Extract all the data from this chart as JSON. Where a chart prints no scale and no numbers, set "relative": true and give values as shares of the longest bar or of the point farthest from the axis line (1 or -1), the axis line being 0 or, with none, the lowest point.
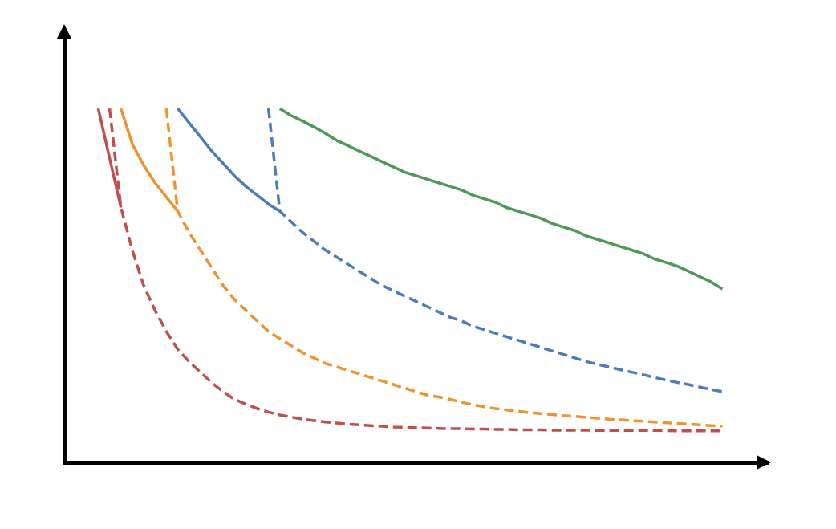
{
  "chart_data": {
    "type": "line",
    "relative": true,
    "grid": false,
    "legend": false,
    "marker": "none",
    "categories": [
      null,
      null,
      null,
      null,
      null,
      null,
      null,
      null,
      null,
      null,
      null,
      null,
      null,
      null,
      null,
      null,
      null,
      null,
      null,
      null,
      null,
      null,
      null,
      null,
      null,
      null,
      null,
      null,
      null,
      null,
      null,
      null,
      null,
      null,
      null,
      null,
      null,
      null,
      null,
      null,
      null,
      null,
      null,
      null,
      null,
      null,
      null,
      null,
      null,
      null,
      null,
      null,
      null,
      null,
      null,
      null,
      null,
      null,
      null,
      null,
      null,
      null,
      null
    ],
    "series": [
      {
        "color": "#c0504d",
        "line_style": "solid",
        "values": [
          null,
          null,
          null,
          1.0,
          0.86,
          0.72,
          null,
          null,
          null,
          null,
          null,
          null,
          null,
          null,
          null,
          null,
          null,
          null,
          null,
          null,
          null,
          null,
          null,
          null,
          null,
          null,
          null,
          null,
          null,
          null,
          null,
          null,
          null,
          null,
          null,
          null,
          null,
          null,
          null,
          null,
          null,
          null,
          null,
          null,
          null,
          null,
          null,
          null,
          null,
          null,
          null,
          null,
          null,
          null,
          null,
          null,
          null,
          null,
          null,
          null,
          null,
          null,
          null
        ]
      },
      {
        "color": "#c0504d",
        "line_style": "dashed",
        "values": [
          null,
          null,
          null,
          null,
          1.0,
          0.72,
          0.6,
          0.5,
          0.43,
          0.37,
          0.32,
          0.285,
          0.255,
          0.225,
          0.2,
          0.178,
          0.165,
          0.152,
          0.142,
          0.134,
          0.128,
          0.122,
          0.118,
          0.114,
          0.111,
          0.108,
          0.106,
          0.104,
          0.102,
          0.1,
          0.099,
          0.098,
          0.097,
          0.096,
          0.095,
          0.095,
          0.094,
          0.094,
          0.093,
          0.093,
          0.092,
          0.092,
          0.092,
          0.091,
          0.091,
          0.091,
          0.091,
          0.09,
          0.09,
          0.09,
          0.09,
          0.09,
          0.09,
          0.09,
          0.089,
          0.089,
          0.089,
          0.089,
          0.089,
          null,
          null,
          null,
          null
        ]
      },
      {
        "color": "#f0922f",
        "line_style": "solid",
        "values": [
          null,
          null,
          null,
          null,
          null,
          1.0,
          0.9,
          0.84,
          0.79,
          0.75,
          0.71,
          null,
          null,
          null,
          null,
          null,
          null,
          null,
          null,
          null,
          null,
          null,
          null,
          null,
          null,
          null,
          null,
          null,
          null,
          null,
          null,
          null,
          null,
          null,
          null,
          null,
          null,
          null,
          null,
          null,
          null,
          null,
          null,
          null,
          null,
          null,
          null,
          null,
          null,
          null,
          null,
          null,
          null,
          null,
          null,
          null,
          null,
          null,
          null,
          null,
          null,
          null,
          null
        ]
      },
      {
        "color": "#f0922f",
        "line_style": "dashed",
        "values": [
          null,
          null,
          null,
          null,
          null,
          null,
          null,
          null,
          null,
          1.0,
          0.71,
          0.65,
          0.6,
          0.55,
          0.5,
          0.46,
          0.43,
          0.4,
          0.37,
          0.35,
          0.33,
          0.31,
          0.295,
          0.28,
          0.27,
          0.26,
          0.25,
          0.24,
          0.23,
          0.22,
          0.21,
          0.2,
          0.19,
          0.185,
          0.178,
          0.17,
          0.163,
          0.157,
          0.152,
          0.148,
          0.145,
          0.14,
          0.138,
          0.135,
          0.132,
          0.13,
          0.127,
          0.125,
          0.122,
          0.12,
          0.118,
          0.116,
          0.114,
          0.112,
          0.11,
          0.108,
          0.106,
          0.104,
          0.102,
          null,
          null,
          null,
          null
        ]
      },
      {
        "color": "#4a7ebb",
        "line_style": "solid",
        "values": [
          null,
          null,
          null,
          null,
          null,
          null,
          null,
          null,
          null,
          null,
          1.0,
          0.96,
          0.92,
          0.88,
          0.845,
          0.81,
          0.78,
          0.755,
          0.73,
          0.71,
          null,
          null,
          null,
          null,
          null,
          null,
          null,
          null,
          null,
          null,
          null,
          null,
          null,
          null,
          null,
          null,
          null,
          null,
          null,
          null,
          null,
          null,
          null,
          null,
          null,
          null,
          null,
          null,
          null,
          null,
          null,
          null,
          null,
          null,
          null,
          null,
          null,
          null,
          null,
          null,
          null,
          null,
          null
        ]
      },
      {
        "color": "#4a7ebb",
        "line_style": "dashed",
        "values": [
          null,
          null,
          null,
          null,
          null,
          null,
          null,
          null,
          null,
          null,
          null,
          null,
          null,
          null,
          null,
          null,
          null,
          null,
          1.0,
          0.71,
          0.68,
          0.65,
          0.625,
          0.6,
          0.58,
          0.56,
          0.54,
          0.52,
          0.5,
          0.485,
          0.47,
          0.455,
          0.44,
          0.425,
          0.41,
          0.4,
          0.385,
          0.375,
          0.365,
          0.355,
          0.345,
          0.335,
          0.325,
          0.315,
          0.305,
          0.295,
          0.285,
          0.277,
          0.27,
          0.262,
          0.255,
          0.248,
          0.24,
          0.233,
          0.226,
          0.22,
          0.213,
          0.206,
          0.2,
          null,
          null,
          null,
          null
        ]
      },
      {
        "color": "#4e9a54",
        "line_style": "solid",
        "values": [
          null,
          null,
          null,
          null,
          null,
          null,
          null,
          null,
          null,
          null,
          null,
          null,
          null,
          null,
          null,
          null,
          null,
          null,
          null,
          1.0,
          0.98,
          0.965,
          0.948,
          0.93,
          0.91,
          0.895,
          0.88,
          0.865,
          0.85,
          0.835,
          0.82,
          0.81,
          0.8,
          0.79,
          0.78,
          0.77,
          0.755,
          0.745,
          0.735,
          0.72,
          0.71,
          0.7,
          0.69,
          0.675,
          0.665,
          0.655,
          0.64,
          0.63,
          0.62,
          0.61,
          0.6,
          0.59,
          0.575,
          0.565,
          0.555,
          0.54,
          0.525,
          0.51,
          0.49,
          null,
          null,
          null,
          null
        ]
      }
    ]
  }
}
